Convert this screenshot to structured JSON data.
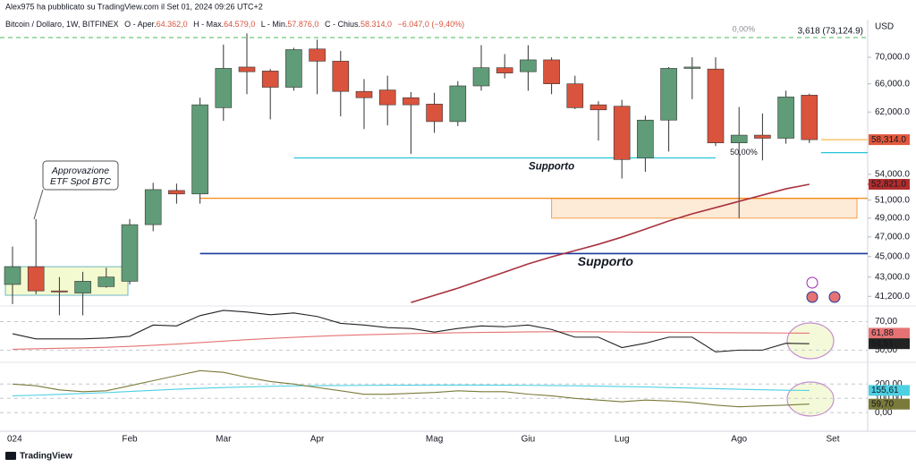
{
  "header": {
    "publisher": "Alex975 ha pubblicato su TradingView.com il Set 01, 2024 09:26 UTC+2",
    "symbol": "Bitcoin / Dollaro, 1W, BITFINEX",
    "ohlc": [
      {
        "key": "O - Aper.",
        "val": "64.362,0"
      },
      {
        "key": "H - Max.",
        "val": "64.579,0"
      },
      {
        "key": "L - Min.",
        "val": "57.876,0"
      },
      {
        "key": "C - Chius.",
        "val": "58.314,0"
      }
    ],
    "change": "−6.047,0 (−9,40%)"
  },
  "currency": "USD",
  "footer": "TradingView",
  "chart_data": [
    {
      "type": "candlestick",
      "log": true,
      "categories": [
        "024",
        null,
        null,
        null,
        null,
        "Feb",
        null,
        null,
        null,
        "Mar",
        null,
        null,
        null,
        "Apr",
        null,
        null,
        null,
        null,
        "Mag",
        null,
        null,
        null,
        "Giu",
        null,
        null,
        null,
        "Lug",
        null,
        null,
        null,
        null,
        "Ago",
        null,
        null,
        null,
        "Set"
      ],
      "open": [
        42300,
        44000,
        41700,
        41500,
        42100,
        42600,
        48300,
        52100,
        51700,
        62600,
        68500,
        67900,
        65500,
        71300,
        69400,
        64900,
        65100,
        64000,
        63100,
        60700,
        65700,
        68400,
        67800,
        69600,
        66000,
        63000,
        62800,
        56000,
        60900,
        68300,
        68200,
        57900,
        58900,
        58500,
        64362,
        null
      ],
      "high": [
        46000,
        48900,
        43000,
        43500,
        43900,
        48900,
        53000,
        52900,
        64000,
        72000,
        73800,
        68200,
        71500,
        72800,
        71000,
        66700,
        67200,
        64800,
        64700,
        66400,
        71900,
        70500,
        71900,
        70000,
        67200,
        63500,
        63700,
        61500,
        68500,
        70000,
        70000,
        62700,
        61800,
        65000,
        64579,
        null
      ],
      "low": [
        40500,
        41400,
        39500,
        39500,
        42000,
        42300,
        47600,
        50600,
        50600,
        60800,
        64500,
        61000,
        65000,
        64500,
        61400,
        59700,
        60200,
        56500,
        59200,
        60100,
        65000,
        66800,
        65000,
        64500,
        62400,
        58200,
        53500,
        54300,
        56800,
        63800,
        57500,
        49000,
        55700,
        57800,
        57876,
        null
      ],
      "close": [
        44000,
        41700,
        41600,
        42600,
        43000,
        48300,
        52200,
        51700,
        63000,
        68300,
        67800,
        65500,
        71200,
        69400,
        64900,
        64000,
        63000,
        63000,
        60700,
        65700,
        68400,
        67600,
        69600,
        66000,
        62600,
        62300,
        55800,
        60900,
        68300,
        68500,
        57900,
        58900,
        58500,
        64100,
        58314,
        null
      ],
      "up_color": "#5f9c77",
      "down_color": "#d9533d",
      "ma_values": [
        null,
        null,
        null,
        null,
        null,
        null,
        null,
        null,
        null,
        null,
        null,
        null,
        null,
        null,
        null,
        null,
        null,
        40640,
        41290,
        41950,
        42710,
        43480,
        44270,
        44970,
        45600,
        46240,
        46980,
        47820,
        48690,
        49470,
        50160,
        50860,
        51570,
        52290,
        52821,
        null
      ],
      "ma_color": "#a8323e",
      "ylim": [
        40490,
        74890
      ],
      "yticks": [
        {
          "value": 70000,
          "label": "70,000.0"
        },
        {
          "value": 66000,
          "label": "66,000.0"
        },
        {
          "value": 62000,
          "label": "62,000.0"
        },
        {
          "value": 54000,
          "label": "54,000.0"
        },
        {
          "value": 51000,
          "label": "51,000.0"
        },
        {
          "value": 49000,
          "label": "49,000.0"
        },
        {
          "value": 47000,
          "label": "47,000.0"
        },
        {
          "value": 45000,
          "label": "45,000.0"
        },
        {
          "value": 43000,
          "label": "43,000.0"
        },
        {
          "value": 41200,
          "label": "41,200.0"
        }
      ],
      "price_tags": [
        {
          "value": 58314,
          "label": "58,314.0",
          "color": "#e0583c"
        },
        {
          "value": 52821,
          "label": "52,821.0",
          "color": "#b22d2d"
        }
      ],
      "levels": [
        {
          "value": 73124.9,
          "label": "3,618 (73,124.9)",
          "pct_label": "0,00%",
          "color": "#6cc67a"
        },
        {
          "value": 56000,
          "label": "Supporto",
          "color": "#26c6da"
        },
        {
          "value": 56660,
          "pct_label": "50,00%",
          "color": "#26c6da"
        },
        {
          "value": 51200,
          "color": "#f57c00"
        },
        {
          "value": 45300,
          "label": "Supporto",
          "color": "#1a3a9c"
        }
      ],
      "zone": {
        "low": 49000,
        "high": 51200,
        "color": "#f5a04a"
      },
      "callout": {
        "lines": [
          "Approvazione",
          "ETF Spot BTC"
        ],
        "low": 41300,
        "high": 44000
      }
    },
    {
      "type": "line",
      "ylim": [
        42.7,
        79.1
      ],
      "yticks": [
        {
          "value": 50,
          "label": "50,00"
        },
        {
          "value": 70,
          "label": "70,00"
        }
      ],
      "series": [
        {
          "color": "#e57373",
          "values": [
            50.6,
            51.0,
            51.3,
            51.6,
            52.0,
            52.6,
            53.4,
            54.3,
            55.3,
            56.3,
            57.3,
            58.2,
            59.0,
            59.7,
            60.3,
            60.8,
            61.2,
            61.6,
            61.9,
            62.2,
            62.4,
            62.6,
            62.8,
            62.9,
            62.9,
            62.8,
            62.7,
            62.6,
            62.5,
            62.4,
            62.3,
            62.2,
            62.1,
            62.0,
            61.88,
            null
          ],
          "value_labels": [
            null,
            null,
            null,
            null,
            null,
            null,
            null,
            null,
            null,
            null,
            null,
            null,
            null,
            null,
            null,
            null,
            null,
            null,
            null,
            null,
            null,
            null,
            null,
            null,
            null,
            null,
            null,
            null,
            null,
            null,
            null,
            null,
            null,
            null,
            "61,88",
            null
          ]
        },
        {
          "color": "#222222",
          "values": [
            61.5,
            57.9,
            57.9,
            57.9,
            58.5,
            59.7,
            67.6,
            67,
            74.2,
            77.9,
            76.7,
            74.8,
            76.1,
            73.6,
            68.8,
            67.6,
            65.8,
            65.2,
            62.7,
            65.2,
            67,
            66.4,
            67.6,
            64.5,
            59.1,
            59.1,
            51.8,
            54.8,
            59.1,
            59.1,
            48.8,
            50,
            50,
            54.8,
            54.51,
            null
          ],
          "value_labels": [
            null,
            null,
            null,
            null,
            null,
            null,
            null,
            null,
            null,
            null,
            null,
            null,
            null,
            null,
            null,
            null,
            null,
            null,
            null,
            null,
            null,
            null,
            null,
            null,
            null,
            null,
            null,
            null,
            null,
            null,
            null,
            null,
            null,
            null,
            "54,51",
            null
          ]
        }
      ]
    },
    {
      "type": "line",
      "ylim": [
        -55,
        321
      ],
      "yticks": [
        {
          "value": 0,
          "label": "0,00"
        },
        {
          "value": 100,
          "label": "100,00"
        },
        {
          "value": 200,
          "label": "200,00"
        }
      ],
      "series": [
        {
          "color": "#4dd0e1",
          "values": [
            118,
            122,
            128,
            134,
            140,
            148,
            156,
            164,
            170,
            176,
            180,
            184,
            187,
            189,
            190,
            191,
            192,
            192,
            193,
            193,
            193,
            192,
            191,
            190,
            188,
            186,
            183,
            180,
            176,
            172,
            168,
            164,
            160,
            157,
            155.61,
            null
          ],
          "value_labels": [
            null,
            null,
            null,
            null,
            null,
            null,
            null,
            null,
            null,
            null,
            null,
            null,
            null,
            null,
            null,
            null,
            null,
            null,
            null,
            null,
            null,
            null,
            null,
            null,
            null,
            null,
            null,
            null,
            null,
            null,
            null,
            null,
            null,
            null,
            "155,61",
            null
          ]
        },
        {
          "color": "#7a7a3a",
          "values": [
            200,
            188,
            159,
            147,
            153,
            188,
            224,
            259,
            294,
            282,
            247,
            218,
            200,
            176,
            153,
            129,
            129,
            135,
            141,
            153,
            147,
            147,
            129,
            118,
            100,
            88,
            76,
            88,
            82,
            71,
            53,
            41,
            47,
            53,
            59.7,
            null
          ],
          "value_labels": [
            null,
            null,
            null,
            null,
            null,
            null,
            null,
            null,
            null,
            null,
            null,
            null,
            null,
            null,
            null,
            null,
            null,
            null,
            null,
            null,
            null,
            null,
            null,
            null,
            null,
            null,
            null,
            null,
            null,
            null,
            null,
            null,
            null,
            null,
            "59,70",
            null
          ]
        }
      ]
    }
  ]
}
